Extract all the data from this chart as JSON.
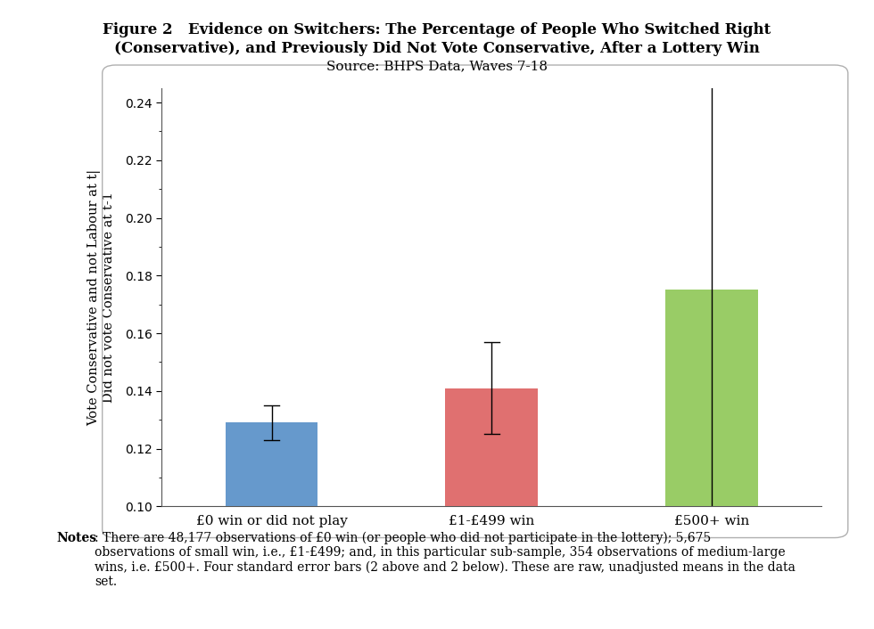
{
  "title_line1": "Figure 2   Evidence on Switchers: The Percentage of People Who Switched Right",
  "title_line2": "(Conservative), and Previously Did Not Vote Conservative, After a Lottery Win",
  "title_line3": "Source: BHPS Data, Waves 7-18",
  "categories": [
    "£0 win or did not play",
    "£1-£499 win",
    "£500+ win"
  ],
  "values": [
    0.129,
    0.141,
    0.175
  ],
  "errors": [
    0.003,
    0.008,
    0.045
  ],
  "bar_colors": [
    "#6699cc",
    "#e07070",
    "#99cc66"
  ],
  "ylabel": "Vote Conservative and not Labour at t|\nDid not vote Conservative at t-1",
  "ylim": [
    0.1,
    0.245
  ],
  "yticks": [
    0.1,
    0.12,
    0.14,
    0.16,
    0.18,
    0.2,
    0.22,
    0.24
  ],
  "notes_bold": "Notes",
  "notes_rest": ": There are 48,177 observations of £0 win (or people who did not participate in the lottery); 5,675\nobservations of small win, i.e., £1-£499; and, in this particular sub-sample, 354 observations of medium-large\nwins, i.e. £500+. Four standard error bars (2 above and 2 below). These are raw, unadjusted means in the data\nset.",
  "background_color": "#ffffff",
  "box_facecolor": "#ffffff"
}
